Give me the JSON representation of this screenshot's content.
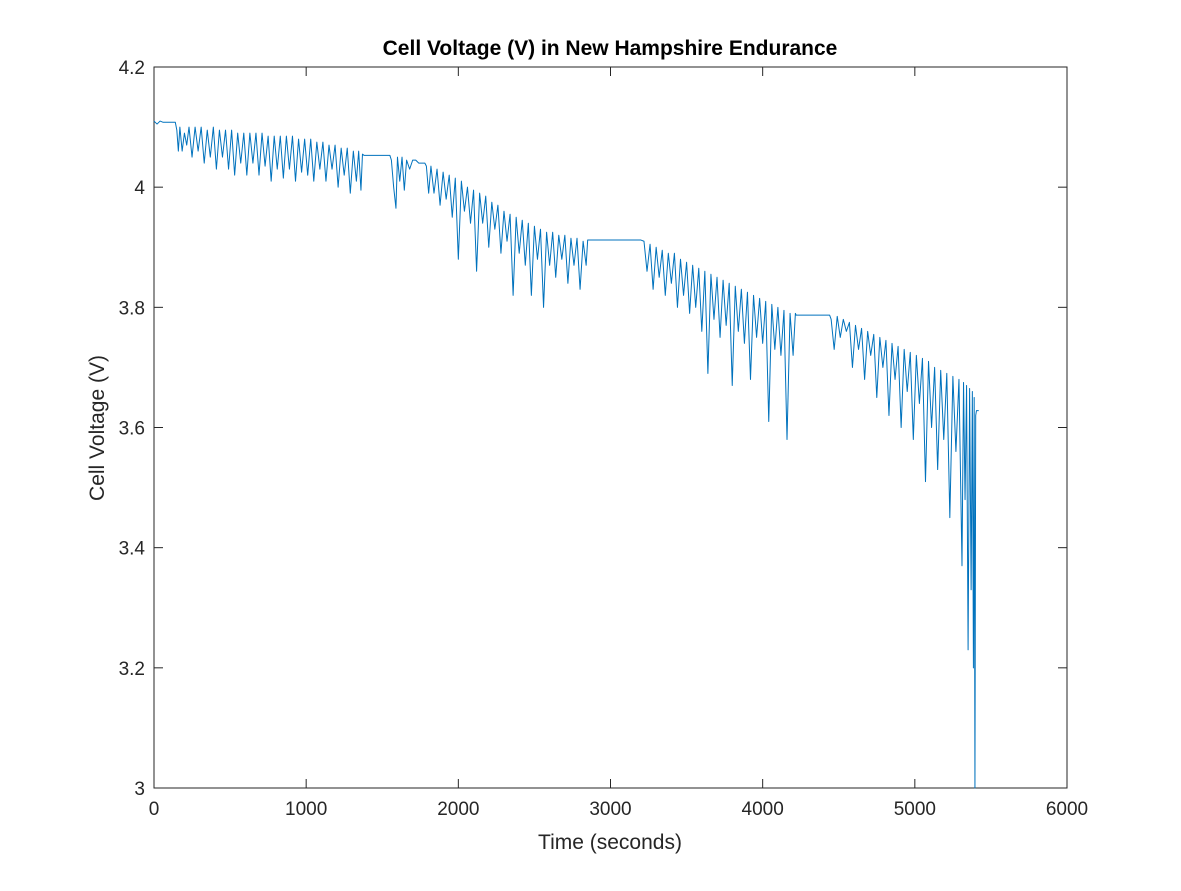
{
  "chart_data": {
    "type": "line",
    "title": "Cell Voltage (V) in New Hampshire Endurance",
    "xlabel": "Time (seconds)",
    "ylabel": "Cell Voltage (V)",
    "xlim": [
      0,
      6000
    ],
    "ylim": [
      3,
      4.2
    ],
    "xticks": [
      0,
      1000,
      2000,
      3000,
      4000,
      5000,
      6000
    ],
    "xtick_labels": [
      "0",
      "1000",
      "2000",
      "3000",
      "4000",
      "5000",
      "6000"
    ],
    "yticks": [
      3,
      3.2,
      3.4,
      3.6,
      3.8,
      4,
      4.2
    ],
    "ytick_labels": [
      "3",
      "3.2",
      "3.4",
      "3.6",
      "3.8",
      "4",
      "4.2"
    ],
    "grid": false,
    "line_color": "#0072BD",
    "series": [
      {
        "points": [
          [
            0,
            4.11
          ],
          [
            20,
            4.105
          ],
          [
            40,
            4.11
          ],
          [
            60,
            4.108
          ],
          [
            100,
            4.108
          ],
          [
            140,
            4.108
          ],
          [
            150,
            4.095
          ],
          [
            160,
            4.06
          ],
          [
            170,
            4.1
          ],
          [
            185,
            4.06
          ],
          [
            200,
            4.09
          ],
          [
            215,
            4.07
          ],
          [
            230,
            4.1
          ],
          [
            250,
            4.05
          ],
          [
            270,
            4.1
          ],
          [
            290,
            4.06
          ],
          [
            310,
            4.1
          ],
          [
            330,
            4.04
          ],
          [
            350,
            4.095
          ],
          [
            370,
            4.05
          ],
          [
            390,
            4.1
          ],
          [
            410,
            4.03
          ],
          [
            430,
            4.095
          ],
          [
            450,
            4.05
          ],
          [
            470,
            4.095
          ],
          [
            490,
            4.03
          ],
          [
            510,
            4.095
          ],
          [
            530,
            4.02
          ],
          [
            550,
            4.09
          ],
          [
            570,
            4.04
          ],
          [
            590,
            4.09
          ],
          [
            610,
            4.02
          ],
          [
            630,
            4.09
          ],
          [
            650,
            4.04
          ],
          [
            670,
            4.09
          ],
          [
            690,
            4.02
          ],
          [
            710,
            4.09
          ],
          [
            730,
            4.035
          ],
          [
            750,
            4.085
          ],
          [
            770,
            4.01
          ],
          [
            790,
            4.085
          ],
          [
            810,
            4.03
          ],
          [
            830,
            4.085
          ],
          [
            850,
            4.015
          ],
          [
            870,
            4.085
          ],
          [
            890,
            4.03
          ],
          [
            910,
            4.085
          ],
          [
            930,
            4.01
          ],
          [
            950,
            4.08
          ],
          [
            970,
            4.025
          ],
          [
            990,
            4.08
          ],
          [
            1010,
            4.02
          ],
          [
            1030,
            4.08
          ],
          [
            1050,
            4.01
          ],
          [
            1070,
            4.075
          ],
          [
            1090,
            4.03
          ],
          [
            1110,
            4.075
          ],
          [
            1130,
            4.01
          ],
          [
            1150,
            4.07
          ],
          [
            1170,
            4.03
          ],
          [
            1190,
            4.07
          ],
          [
            1210,
            4.0
          ],
          [
            1230,
            4.065
          ],
          [
            1250,
            4.02
          ],
          [
            1270,
            4.065
          ],
          [
            1290,
            3.99
          ],
          [
            1310,
            4.06
          ],
          [
            1330,
            4.01
          ],
          [
            1345,
            4.06
          ],
          [
            1360,
            3.995
          ],
          [
            1370,
            4.055
          ],
          [
            1380,
            4.053
          ],
          [
            1500,
            4.053
          ],
          [
            1550,
            4.053
          ],
          [
            1560,
            4.045
          ],
          [
            1575,
            4.0
          ],
          [
            1590,
            3.965
          ],
          [
            1600,
            4.05
          ],
          [
            1615,
            4.01
          ],
          [
            1630,
            4.05
          ],
          [
            1645,
            3.995
          ],
          [
            1660,
            4.045
          ],
          [
            1680,
            4.03
          ],
          [
            1700,
            4.045
          ],
          [
            1720,
            4.045
          ],
          [
            1740,
            4.04
          ],
          [
            1760,
            4.04
          ],
          [
            1780,
            4.04
          ],
          [
            1790,
            4.035
          ],
          [
            1805,
            3.99
          ],
          [
            1820,
            4.035
          ],
          [
            1840,
            3.99
          ],
          [
            1860,
            4.03
          ],
          [
            1880,
            3.97
          ],
          [
            1900,
            4.025
          ],
          [
            1920,
            3.98
          ],
          [
            1940,
            4.02
          ],
          [
            1960,
            3.95
          ],
          [
            1980,
            4.015
          ],
          [
            2000,
            3.88
          ],
          [
            2020,
            4.01
          ],
          [
            2040,
            3.96
          ],
          [
            2060,
            4.0
          ],
          [
            2080,
            3.94
          ],
          [
            2100,
            3.995
          ],
          [
            2120,
            3.86
          ],
          [
            2140,
            3.99
          ],
          [
            2160,
            3.94
          ],
          [
            2180,
            3.985
          ],
          [
            2200,
            3.9
          ],
          [
            2220,
            3.975
          ],
          [
            2240,
            3.93
          ],
          [
            2260,
            3.97
          ],
          [
            2280,
            3.89
          ],
          [
            2300,
            3.96
          ],
          [
            2320,
            3.91
          ],
          [
            2340,
            3.955
          ],
          [
            2360,
            3.82
          ],
          [
            2380,
            3.95
          ],
          [
            2400,
            3.89
          ],
          [
            2420,
            3.945
          ],
          [
            2440,
            3.87
          ],
          [
            2460,
            3.94
          ],
          [
            2480,
            3.82
          ],
          [
            2500,
            3.935
          ],
          [
            2520,
            3.88
          ],
          [
            2540,
            3.93
          ],
          [
            2560,
            3.8
          ],
          [
            2580,
            3.925
          ],
          [
            2600,
            3.87
          ],
          [
            2620,
            3.925
          ],
          [
            2640,
            3.85
          ],
          [
            2660,
            3.92
          ],
          [
            2680,
            3.88
          ],
          [
            2700,
            3.92
          ],
          [
            2720,
            3.84
          ],
          [
            2740,
            3.915
          ],
          [
            2760,
            3.87
          ],
          [
            2780,
            3.915
          ],
          [
            2800,
            3.83
          ],
          [
            2820,
            3.91
          ],
          [
            2840,
            3.87
          ],
          [
            2850,
            3.912
          ],
          [
            2900,
            3.912
          ],
          [
            3000,
            3.912
          ],
          [
            3100,
            3.912
          ],
          [
            3200,
            3.912
          ],
          [
            3220,
            3.91
          ],
          [
            3240,
            3.86
          ],
          [
            3260,
            3.905
          ],
          [
            3280,
            3.83
          ],
          [
            3300,
            3.9
          ],
          [
            3320,
            3.85
          ],
          [
            3340,
            3.895
          ],
          [
            3360,
            3.82
          ],
          [
            3380,
            3.89
          ],
          [
            3400,
            3.84
          ],
          [
            3420,
            3.89
          ],
          [
            3440,
            3.8
          ],
          [
            3460,
            3.88
          ],
          [
            3480,
            3.82
          ],
          [
            3500,
            3.875
          ],
          [
            3520,
            3.79
          ],
          [
            3540,
            3.87
          ],
          [
            3560,
            3.8
          ],
          [
            3580,
            3.865
          ],
          [
            3600,
            3.76
          ],
          [
            3620,
            3.86
          ],
          [
            3640,
            3.69
          ],
          [
            3660,
            3.855
          ],
          [
            3680,
            3.78
          ],
          [
            3700,
            3.85
          ],
          [
            3720,
            3.75
          ],
          [
            3740,
            3.845
          ],
          [
            3760,
            3.77
          ],
          [
            3780,
            3.84
          ],
          [
            3800,
            3.67
          ],
          [
            3820,
            3.835
          ],
          [
            3840,
            3.76
          ],
          [
            3860,
            3.83
          ],
          [
            3880,
            3.74
          ],
          [
            3900,
            3.825
          ],
          [
            3920,
            3.68
          ],
          [
            3940,
            3.82
          ],
          [
            3960,
            3.75
          ],
          [
            3980,
            3.815
          ],
          [
            4000,
            3.74
          ],
          [
            4020,
            3.81
          ],
          [
            4040,
            3.61
          ],
          [
            4060,
            3.805
          ],
          [
            4080,
            3.73
          ],
          [
            4100,
            3.8
          ],
          [
            4120,
            3.72
          ],
          [
            4140,
            3.795
          ],
          [
            4160,
            3.58
          ],
          [
            4180,
            3.79
          ],
          [
            4200,
            3.72
          ],
          [
            4215,
            3.79
          ],
          [
            4220,
            3.787
          ],
          [
            4300,
            3.787
          ],
          [
            4400,
            3.787
          ],
          [
            4440,
            3.787
          ],
          [
            4450,
            3.78
          ],
          [
            4470,
            3.73
          ],
          [
            4490,
            3.785
          ],
          [
            4510,
            3.75
          ],
          [
            4530,
            3.78
          ],
          [
            4550,
            3.76
          ],
          [
            4570,
            3.775
          ],
          [
            4590,
            3.7
          ],
          [
            4610,
            3.77
          ],
          [
            4630,
            3.73
          ],
          [
            4650,
            3.765
          ],
          [
            4670,
            3.68
          ],
          [
            4690,
            3.76
          ],
          [
            4710,
            3.72
          ],
          [
            4730,
            3.755
          ],
          [
            4750,
            3.65
          ],
          [
            4770,
            3.75
          ],
          [
            4790,
            3.7
          ],
          [
            4810,
            3.745
          ],
          [
            4830,
            3.62
          ],
          [
            4850,
            3.74
          ],
          [
            4870,
            3.68
          ],
          [
            4890,
            3.735
          ],
          [
            4910,
            3.6
          ],
          [
            4930,
            3.73
          ],
          [
            4950,
            3.66
          ],
          [
            4970,
            3.725
          ],
          [
            4990,
            3.58
          ],
          [
            5010,
            3.72
          ],
          [
            5030,
            3.64
          ],
          [
            5050,
            3.715
          ],
          [
            5070,
            3.51
          ],
          [
            5090,
            3.71
          ],
          [
            5110,
            3.6
          ],
          [
            5130,
            3.7
          ],
          [
            5150,
            3.53
          ],
          [
            5170,
            3.695
          ],
          [
            5190,
            3.58
          ],
          [
            5210,
            3.69
          ],
          [
            5230,
            3.45
          ],
          [
            5250,
            3.685
          ],
          [
            5270,
            3.56
          ],
          [
            5290,
            3.68
          ],
          [
            5310,
            3.37
          ],
          [
            5320,
            3.675
          ],
          [
            5330,
            3.48
          ],
          [
            5340,
            3.67
          ],
          [
            5350,
            3.23
          ],
          [
            5360,
            3.665
          ],
          [
            5370,
            3.33
          ],
          [
            5378,
            3.66
          ],
          [
            5385,
            3.2
          ],
          [
            5390,
            3.65
          ],
          [
            5395,
            3.0
          ],
          [
            5400,
            3.62
          ],
          [
            5405,
            3.628
          ],
          [
            5420,
            3.628
          ]
        ]
      }
    ]
  }
}
